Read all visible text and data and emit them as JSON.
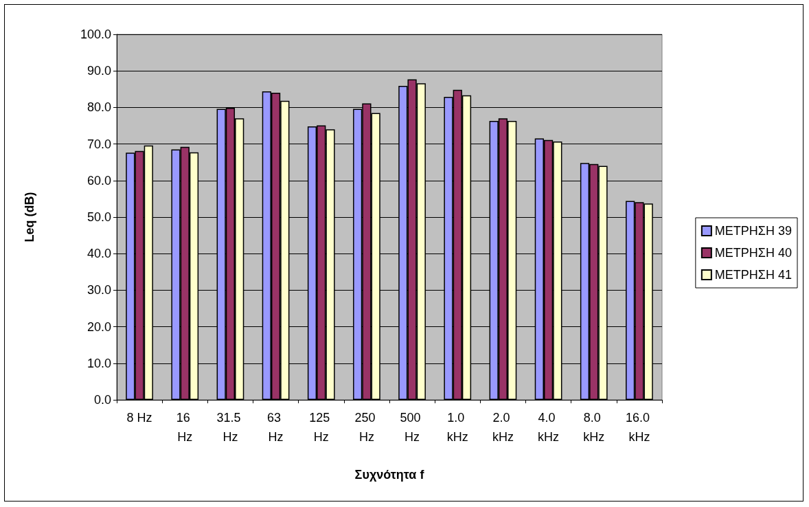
{
  "chart_data": {
    "type": "bar",
    "xlabel": "Συχνότητα f",
    "ylabel": "Leq (dB)",
    "categories": [
      "8 Hz",
      "16 Hz",
      "31.5 Hz",
      "63 Hz",
      "125 Hz",
      "250 Hz",
      "500 Hz",
      "1.0 kHz",
      "2.0 kHz",
      "4.0 kHz",
      "8.0 kHz",
      "16.0 kHz"
    ],
    "series": [
      {
        "name": "ΜΕΤΡΗΣΗ 39",
        "color": "#9999ff",
        "values": [
          67.6,
          68.5,
          79.6,
          84.4,
          74.8,
          79.6,
          85.9,
          82.9,
          76.3,
          71.5,
          64.8,
          54.4
        ]
      },
      {
        "name": "ΜΕΤΡΗΣΗ 40",
        "color": "#993366",
        "values": [
          68.1,
          69.2,
          79.9,
          84.0,
          75.1,
          81.1,
          87.7,
          84.8,
          77.0,
          71.1,
          64.5,
          54.1
        ]
      },
      {
        "name": "ΜΕΤΡΗΣΗ 41",
        "color": "#ffffcc",
        "values": [
          69.6,
          67.7,
          77.0,
          81.8,
          74.0,
          78.5,
          86.6,
          83.3,
          76.3,
          70.7,
          64.0,
          53.7
        ]
      }
    ],
    "ylim": [
      0,
      100
    ],
    "yticks": [
      {
        "value": 0,
        "label": "0.0"
      },
      {
        "value": 10,
        "label": "10.0"
      },
      {
        "value": 20,
        "label": "20.0"
      },
      {
        "value": 30,
        "label": "30.0"
      },
      {
        "value": 40,
        "label": "40.0"
      },
      {
        "value": 50,
        "label": "50.0"
      },
      {
        "value": 60,
        "label": "60.0"
      },
      {
        "value": 70,
        "label": "70.0"
      },
      {
        "value": 80,
        "label": "80.0"
      },
      {
        "value": 90,
        "label": "90.0"
      },
      {
        "value": 100,
        "label": "100.0"
      }
    ],
    "grid": "y",
    "legend": "right"
  }
}
